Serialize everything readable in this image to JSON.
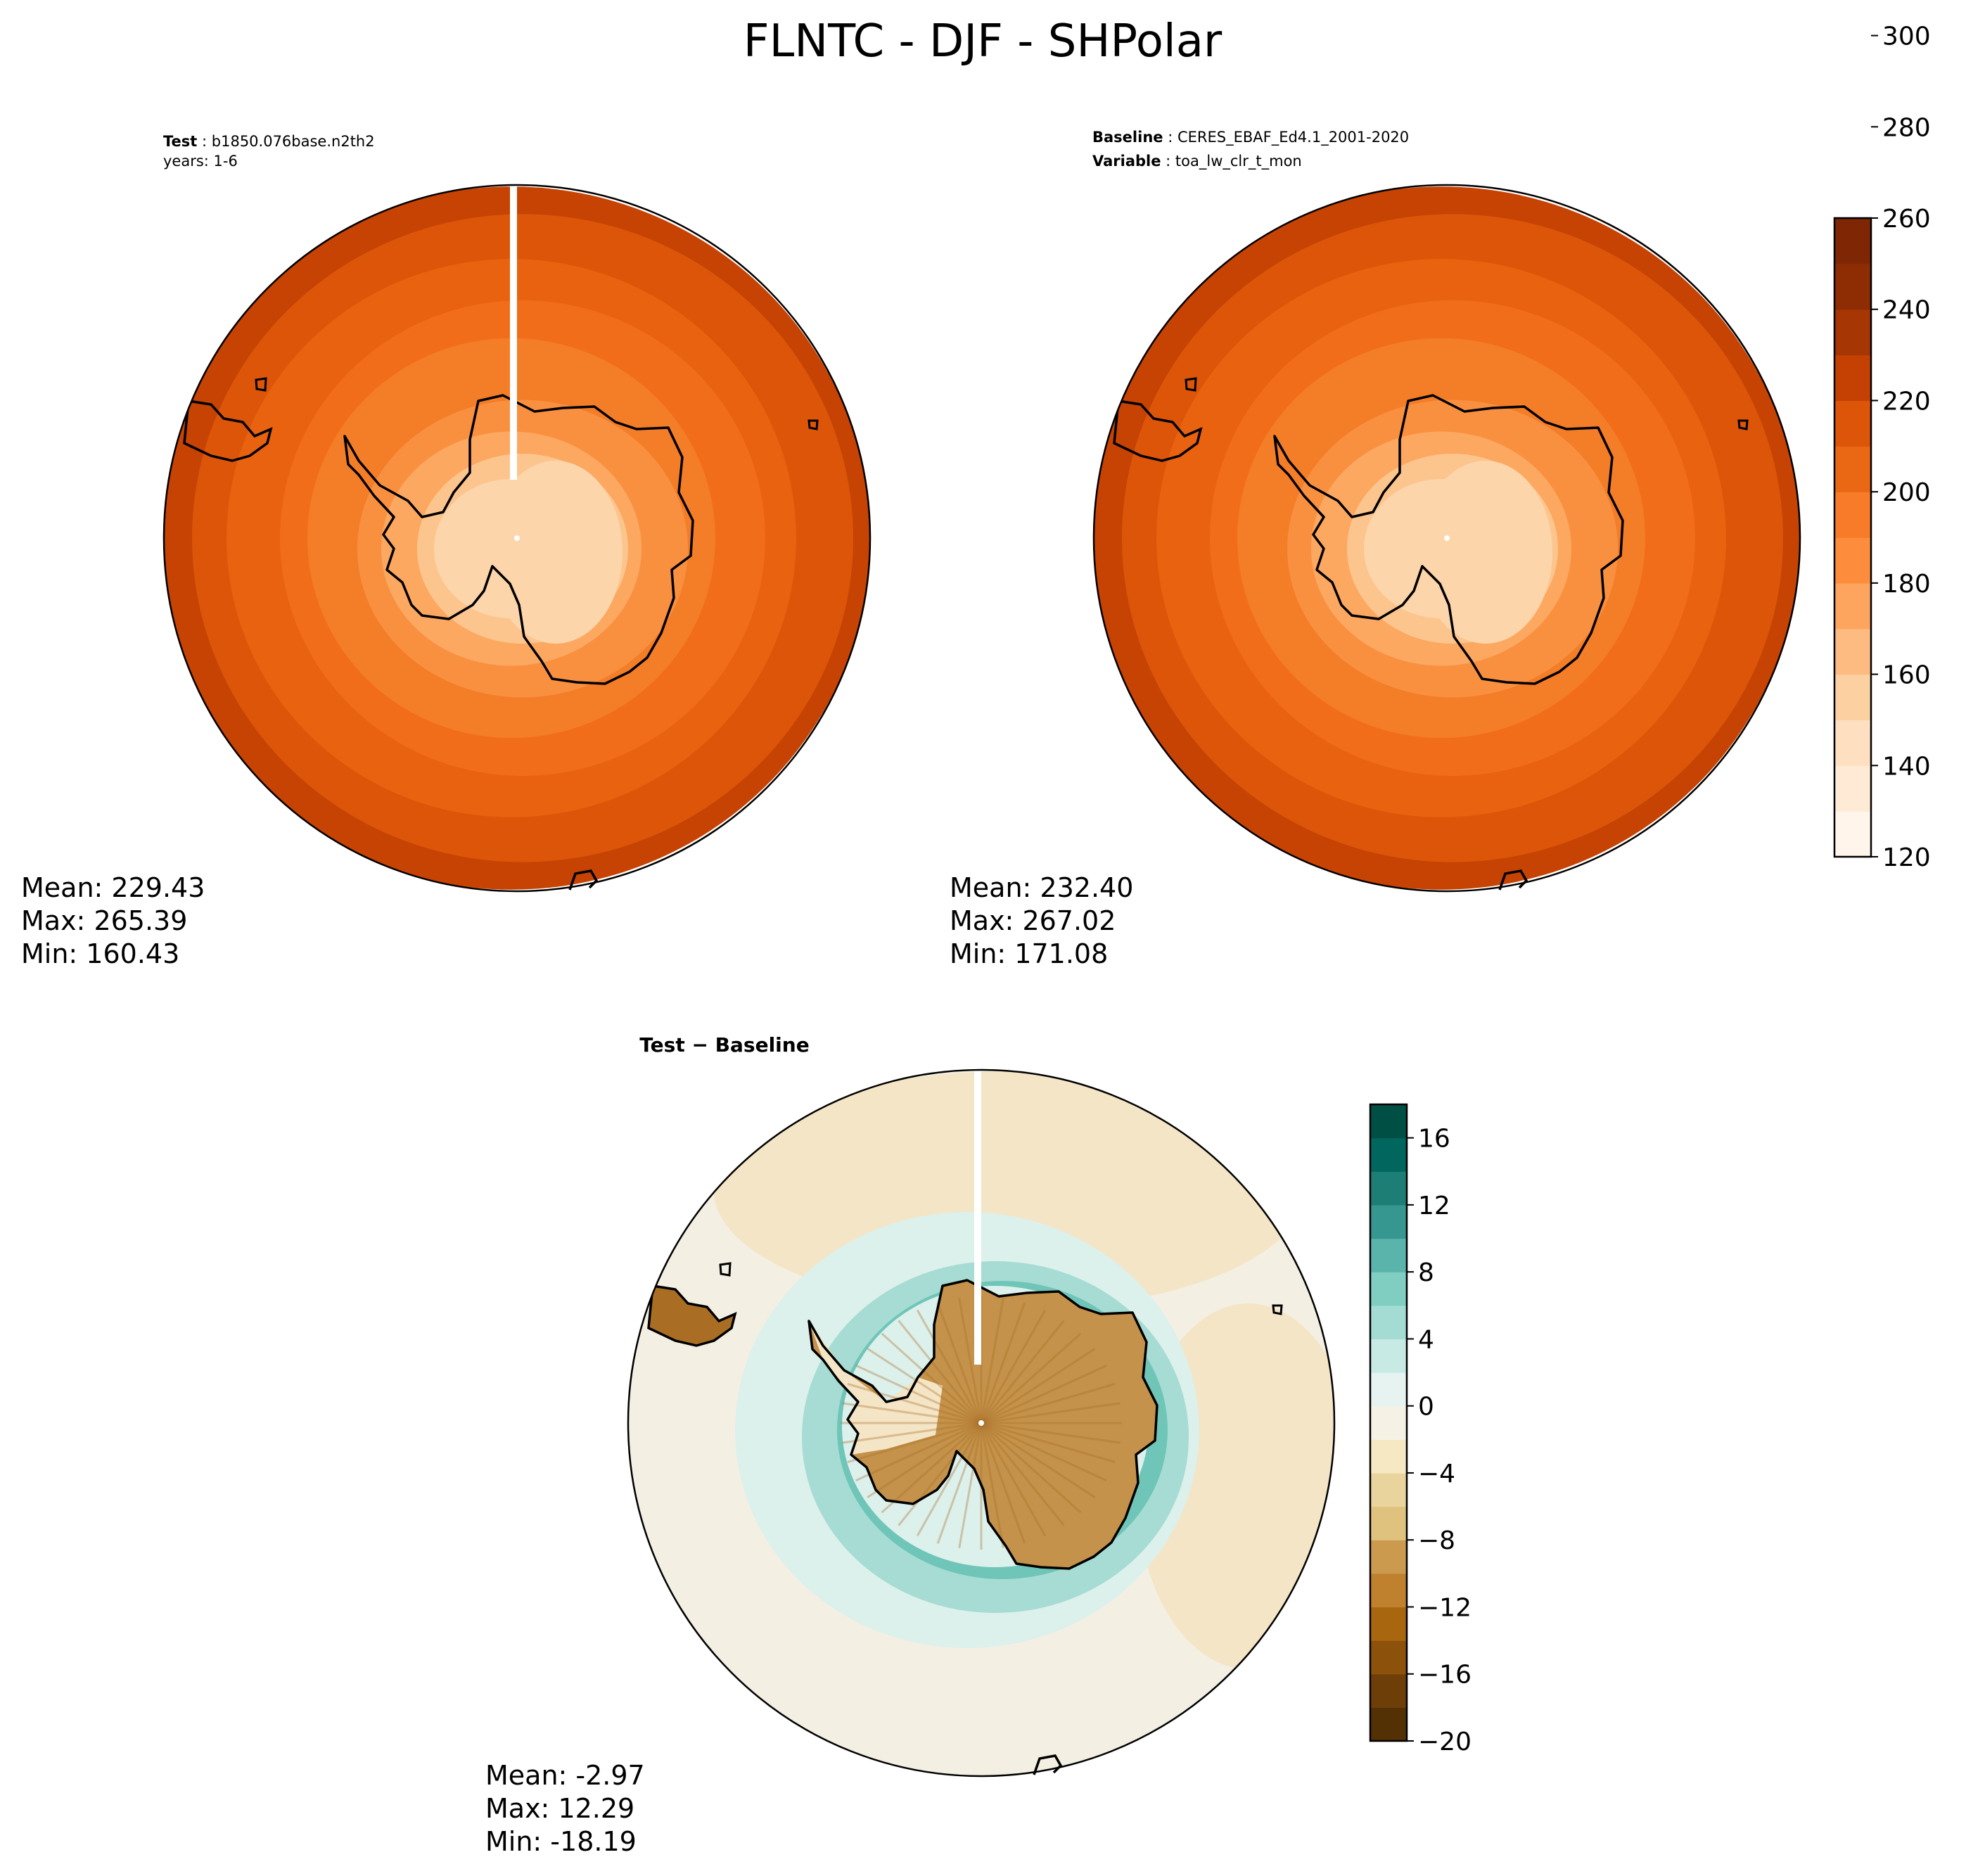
{
  "title": "FLNTC - DJF - SHPolar",
  "panels": {
    "test": {
      "label_key": "Test",
      "label_value": "b1850.076base.n2th2",
      "label_line2": "years: 1-6",
      "stats": {
        "mean": "Mean: 229.43",
        "max": "Max: 265.39",
        "min": "Min: 160.43"
      }
    },
    "baseline": {
      "label_key": "Baseline",
      "label_value": "CERES_EBAF_Ed4.1_2001-2020",
      "label2_key": "Variable",
      "label2_value": "toa_lw_clr_t_mon",
      "stats": {
        "mean": "Mean: 232.40",
        "max": "Max: 267.02",
        "min": "Min: 171.08"
      }
    },
    "diff": {
      "title": "Test − Baseline",
      "stats": {
        "mean": "Mean: -2.97",
        "max": "Max: 12.29",
        "min": "Min: -18.19"
      }
    }
  },
  "colorbars": {
    "main": {
      "ticks": [
        "120",
        "140",
        "160",
        "180",
        "200",
        "220",
        "240",
        "260",
        "280",
        "300"
      ],
      "colors": [
        "#fff5eb",
        "#feead5",
        "#fee0c1",
        "#fdd0a2",
        "#fdba81",
        "#fda45f",
        "#fd8d3c",
        "#f77b28",
        "#ea6813",
        "#dd5509",
        "#c44103",
        "#a63603",
        "#8e2d04",
        "#7f2704"
      ]
    },
    "diff": {
      "ticks": [
        "−20",
        "−16",
        "−12",
        "−8",
        "−4",
        "0",
        "4",
        "8",
        "12",
        "16"
      ],
      "colors": [
        "#543005",
        "#6e3e08",
        "#8c510a",
        "#a8670f",
        "#bf812d",
        "#cc9a4f",
        "#dfc27d",
        "#e9d49d",
        "#f6e8c3",
        "#f5f1e5",
        "#e6f3f1",
        "#c7eae5",
        "#a4dbd2",
        "#80cdc1",
        "#5ab4ac",
        "#35978f",
        "#1d7e76",
        "#01665e",
        "#004f45"
      ]
    }
  },
  "map_colors": {
    "main_rings": [
      "#c64303",
      "#dd5509",
      "#e8620f",
      "#f26d19",
      "#f47d27",
      "#f99040",
      "#fca860",
      "#fdc58e",
      "#fdd5aa"
    ],
    "diff_ocean": "#f3efe3",
    "diff_tan": "#f4e5c6",
    "diff_teal_light": "#dcf0ec",
    "diff_teal": "#a6dcd3",
    "diff_teal_dark": "#6fc5b8",
    "diff_land": "#c4924a",
    "diff_land_dark": "#a96e24"
  }
}
